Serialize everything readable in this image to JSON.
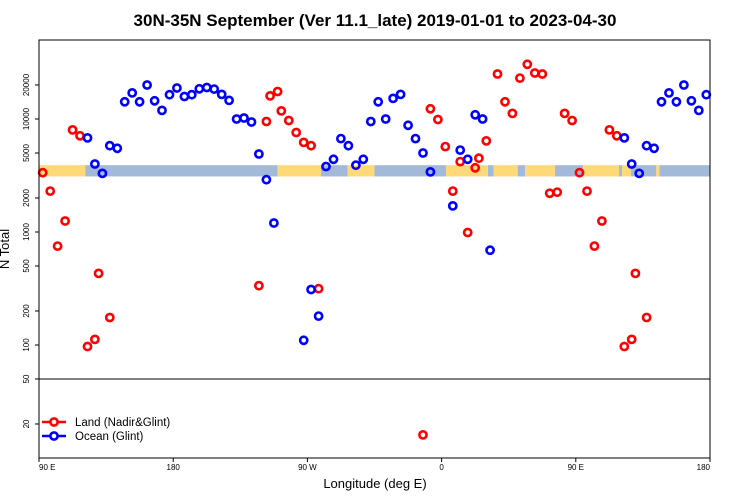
{
  "chart_data": {
    "type": "scatter",
    "title": "30N-35N September (Ver 11.1_late)   2019-01-01 to 2023-04-30",
    "xlabel": "Longitude (deg E)",
    "ylabel": "N Total",
    "xlim": [
      90,
      540
    ],
    "ylim": [
      10,
      50000
    ],
    "yscale": "log",
    "x_ticks": [
      {
        "value": 90,
        "label": "90 E"
      },
      {
        "value": 180,
        "label": "180"
      },
      {
        "value": 270,
        "label": "90 W"
      },
      {
        "value": 360,
        "label": "0"
      },
      {
        "value": 450,
        "label": "90 E"
      },
      {
        "value": 540,
        "label": "180"
      }
    ],
    "y_ticks": [
      {
        "value": 20,
        "label": "20"
      },
      {
        "value": 50,
        "label": "50"
      },
      {
        "value": 100,
        "label": "100"
      },
      {
        "value": 200,
        "label": "200"
      },
      {
        "value": 500,
        "label": "500"
      },
      {
        "value": 1000,
        "label": "1000"
      },
      {
        "value": 2000,
        "label": "2000"
      },
      {
        "value": 5000,
        "label": "5000"
      },
      {
        "value": 10000,
        "label": "10000"
      },
      {
        "value": 20000,
        "label": "20000"
      }
    ],
    "separator_y": 50,
    "colors": {
      "land": "#ff0000",
      "ocean": "#0000ff",
      "band_land": "#ffd978",
      "band_ocean": "#a3b9d9"
    },
    "band": {
      "y_range": [
        3100,
        3900
      ],
      "land_ranges": [
        [
          90,
          121
        ],
        [
          250,
          279
        ],
        [
          297,
          315
        ],
        [
          363,
          391
        ],
        [
          395,
          411
        ],
        [
          416,
          436
        ],
        [
          455,
          479
        ],
        [
          481,
          487
        ],
        [
          504,
          506
        ]
      ],
      "ocean_ranges": [
        [
          121,
          250
        ],
        [
          279,
          297
        ],
        [
          315,
          363
        ],
        [
          391,
          395
        ],
        [
          411,
          416
        ],
        [
          436,
          455
        ],
        [
          479,
          481
        ],
        [
          487,
          504
        ],
        [
          506,
          540
        ]
      ]
    },
    "legend": {
      "position": "bottom-left",
      "entries": [
        "Land (Nadir&Glint)",
        "Ocean (Glint)"
      ]
    },
    "series": [
      {
        "name": "Land (Nadir&Glint)",
        "color": "#ff0000",
        "points": [
          [
            92.5,
            3350
          ],
          [
            97.5,
            2300
          ],
          [
            102.5,
            750
          ],
          [
            107.5,
            1250
          ],
          [
            112.5,
            8000
          ],
          [
            117.5,
            7100
          ],
          [
            122.5,
            97
          ],
          [
            127.5,
            112
          ],
          [
            130,
            430
          ],
          [
            137.5,
            175
          ],
          [
            237.5,
            335
          ],
          [
            242.5,
            9500
          ],
          [
            245,
            16000
          ],
          [
            250,
            17500
          ],
          [
            252.5,
            11800
          ],
          [
            257.5,
            9700
          ],
          [
            262.5,
            7600
          ],
          [
            267.5,
            6200
          ],
          [
            272.5,
            5800
          ],
          [
            277.5,
            315
          ],
          [
            347.5,
            16
          ],
          [
            352.5,
            12300
          ],
          [
            357.5,
            9900
          ],
          [
            362.5,
            5700
          ],
          [
            367.5,
            2300
          ],
          [
            372.5,
            4200
          ],
          [
            377.5,
            990
          ],
          [
            382.5,
            3700
          ],
          [
            385,
            4500
          ],
          [
            390,
            6400
          ],
          [
            397.5,
            25000
          ],
          [
            402.5,
            14200
          ],
          [
            407.5,
            11200
          ],
          [
            412.5,
            23000
          ],
          [
            417.5,
            30500
          ],
          [
            422.5,
            25500
          ],
          [
            427.5,
            25000
          ],
          [
            432.5,
            2200
          ],
          [
            437.5,
            2250
          ],
          [
            442.5,
            11200
          ],
          [
            447.5,
            9700
          ],
          [
            452.5,
            3350
          ],
          [
            457.5,
            2300
          ],
          [
            462.5,
            750
          ],
          [
            467.5,
            1250
          ],
          [
            472.5,
            8000
          ],
          [
            477.5,
            7100
          ],
          [
            482.5,
            97
          ],
          [
            487.5,
            112
          ],
          [
            490,
            430
          ],
          [
            497.5,
            175
          ]
        ]
      },
      {
        "name": "Ocean (Glint)",
        "color": "#0000ff",
        "points": [
          [
            122.5,
            6800
          ],
          [
            127.5,
            4000
          ],
          [
            132.5,
            3300
          ],
          [
            137.5,
            5800
          ],
          [
            142.5,
            5500
          ],
          [
            147.5,
            14200
          ],
          [
            152.5,
            17000
          ],
          [
            157.5,
            14200
          ],
          [
            162.5,
            20000
          ],
          [
            167.5,
            14500
          ],
          [
            172.5,
            11900
          ],
          [
            177.5,
            16400
          ],
          [
            182.5,
            18800
          ],
          [
            187.5,
            15800
          ],
          [
            192.5,
            16400
          ],
          [
            197.5,
            18500
          ],
          [
            202.5,
            19000
          ],
          [
            207.5,
            18400
          ],
          [
            212.5,
            16500
          ],
          [
            217.5,
            14600
          ],
          [
            222.5,
            10000
          ],
          [
            227.5,
            10200
          ],
          [
            232.5,
            9400
          ],
          [
            237.5,
            4900
          ],
          [
            242.5,
            2900
          ],
          [
            247.5,
            1200
          ],
          [
            267.5,
            110
          ],
          [
            272.5,
            310
          ],
          [
            277.5,
            180
          ],
          [
            282.5,
            3800
          ],
          [
            287.5,
            4400
          ],
          [
            292.5,
            6700
          ],
          [
            297.5,
            5800
          ],
          [
            302.5,
            3900
          ],
          [
            307.5,
            4400
          ],
          [
            312.5,
            9500
          ],
          [
            317.5,
            14200
          ],
          [
            322.5,
            10000
          ],
          [
            327.5,
            15200
          ],
          [
            332.5,
            16500
          ],
          [
            337.5,
            8800
          ],
          [
            342.5,
            6700
          ],
          [
            347.5,
            5000
          ],
          [
            352.5,
            3400
          ],
          [
            367.5,
            1700
          ],
          [
            372.5,
            5300
          ],
          [
            377.5,
            4400
          ],
          [
            382.5,
            10900
          ],
          [
            387.5,
            10000
          ],
          [
            392.5,
            690
          ],
          [
            482.5,
            6800
          ],
          [
            487.5,
            4000
          ],
          [
            492.5,
            3300
          ],
          [
            497.5,
            5800
          ],
          [
            502.5,
            5500
          ],
          [
            507.5,
            14200
          ],
          [
            512.5,
            17000
          ],
          [
            517.5,
            14200
          ],
          [
            522.5,
            20000
          ],
          [
            527.5,
            14500
          ],
          [
            532.5,
            11900
          ],
          [
            537.5,
            16400
          ]
        ]
      }
    ]
  }
}
